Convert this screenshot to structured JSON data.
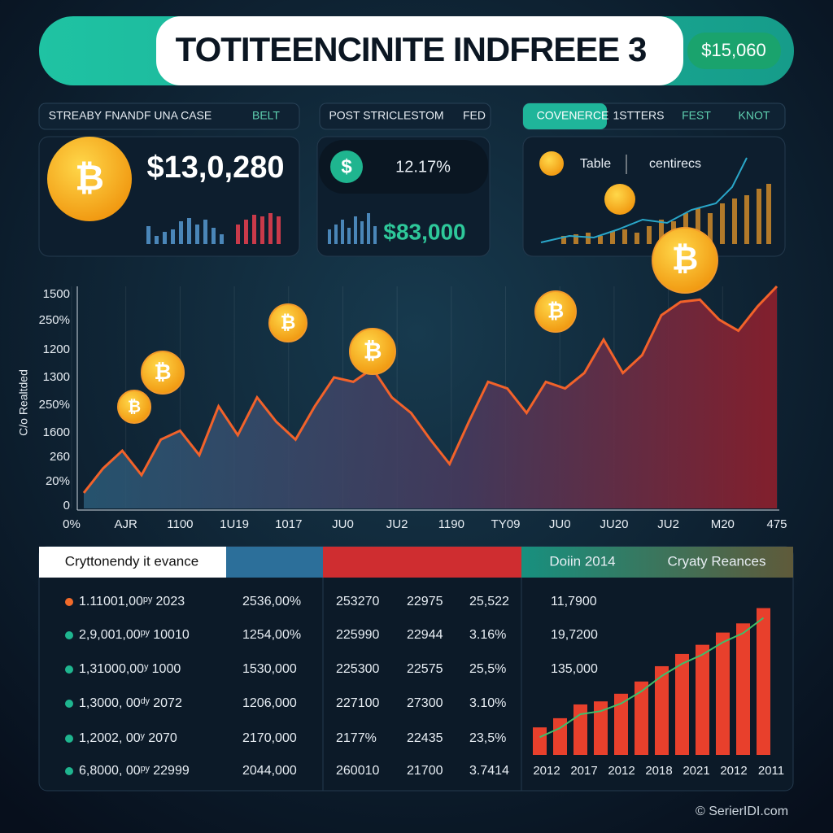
{
  "header": {
    "title": "TOTITEENCINITE INDFREEE 3",
    "badge": "$15,060"
  },
  "cards": [
    {
      "tabs": [
        "STREABY FNANDF UNA CASE",
        "BELT"
      ],
      "value": "$13,0,280"
    },
    {
      "tabs": [
        "POST STRICLESTOM",
        "FED"
      ],
      "icon": "$",
      "value": "12.17%",
      "subvalue": "$83,000"
    },
    {
      "tabs": [
        "COVENERCE",
        "1STTERS",
        "FEST",
        "KNOT"
      ],
      "labels": [
        "Table",
        "centirecs"
      ]
    }
  ],
  "main_chart": {
    "y_title": "C/o Realtded",
    "y_labels": [
      "1500",
      "250%",
      "1200",
      "1300",
      "250%",
      "1600",
      "260",
      "20%",
      "0"
    ],
    "x_labels": [
      "0%",
      "AJR",
      "1100",
      "1U19",
      "1017",
      "JU0",
      "JU2",
      "1190",
      "TY09",
      "JU0",
      "JU20",
      "JU2",
      "M20",
      "475"
    ],
    "ylim": [
      0,
      100
    ],
    "values": [
      7,
      18,
      26,
      15,
      31,
      35,
      24,
      46,
      33,
      50,
      39,
      31,
      46,
      59,
      57,
      63,
      50,
      43,
      31,
      20,
      39,
      57,
      54,
      43,
      57,
      54,
      61,
      76,
      61,
      69,
      87,
      93,
      94,
      85,
      80,
      91,
      100
    ]
  },
  "table": {
    "headers": [
      "Cryttonendy it evance",
      "Doiin 2014",
      "Cryaty Reances"
    ],
    "rows": [
      [
        "1.11001,00ᵖʸ 2023",
        "2536,00%",
        "253270",
        "22975",
        "25,522",
        "11,7900"
      ],
      [
        "2,9,001,00ᵖʸ 10010",
        "1254,00%",
        "225990",
        "22944",
        "3.16%",
        "19,7200"
      ],
      [
        "1,31000,00ʸ 1000",
        "1530,000",
        "225300",
        "22575",
        "25,5%",
        "135,000"
      ],
      [
        "1,3000, 00ᵈʸ 2072",
        "1206,000",
        "227100",
        "27300",
        "3.10%"
      ],
      [
        "1,2002, 00ʸ 2070",
        "2170,000",
        "2177%",
        "22435",
        "23,5%"
      ],
      [
        "6,8000, 00ᵖʸ 22999",
        "2044,000",
        "260010",
        "21700",
        "3.7414"
      ]
    ],
    "dot_colors": [
      "#f26b2a",
      "#1fb58f",
      "#1fb58f",
      "#1fb58f",
      "#1fb58f",
      "#1fb58f"
    ]
  },
  "bar_chart": {
    "x_labels": [
      "2012",
      "2017",
      "2012",
      "2018",
      "2021",
      "2012",
      "2011"
    ],
    "ylim": [
      0,
      100
    ],
    "color": "#e8402c",
    "values": [
      18,
      24,
      33,
      35,
      40,
      48,
      58,
      66,
      72,
      80,
      86,
      96
    ]
  },
  "footer": "© SerierIDI.com"
}
